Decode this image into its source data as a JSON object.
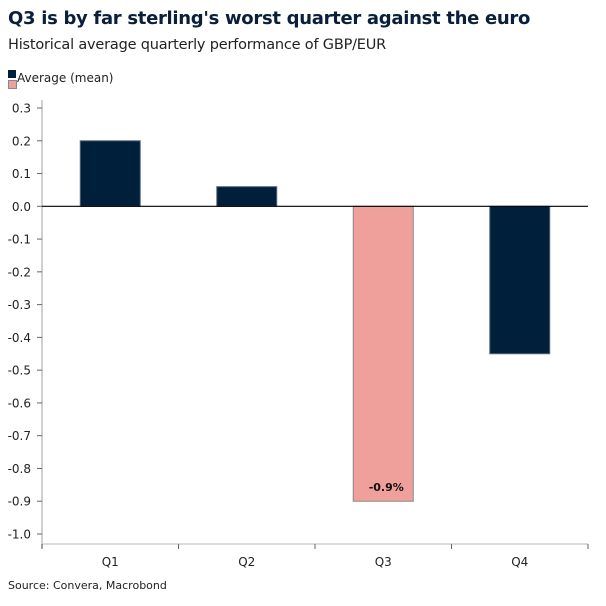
{
  "chart_data": {
    "type": "bar",
    "title": "Q3 is by far sterling's worst quarter against the euro",
    "subtitle": "Historical average quarterly performance of GBP/EUR",
    "categories": [
      "Q1",
      "Q2",
      "Q3",
      "Q4"
    ],
    "series": [
      {
        "name": "Average (mean)",
        "values": [
          0.2,
          0.06,
          -0.9,
          -0.45
        ]
      }
    ],
    "highlight": {
      "category": "Q3",
      "color": "#f0a09a",
      "data_label": "-0.9%"
    },
    "bar_color": "#001f3a",
    "ylim": [
      -1.0,
      0.3
    ],
    "yticks": [
      "0.3",
      "0.2",
      "0.1",
      "0.0",
      "-0.1",
      "-0.2",
      "-0.3",
      "-0.4",
      "-0.5",
      "-0.6",
      "-0.7",
      "-0.8",
      "-0.9",
      "-1.0"
    ],
    "legend": "top-left",
    "grid": false,
    "source": "Source: Convera, Macrobond"
  }
}
